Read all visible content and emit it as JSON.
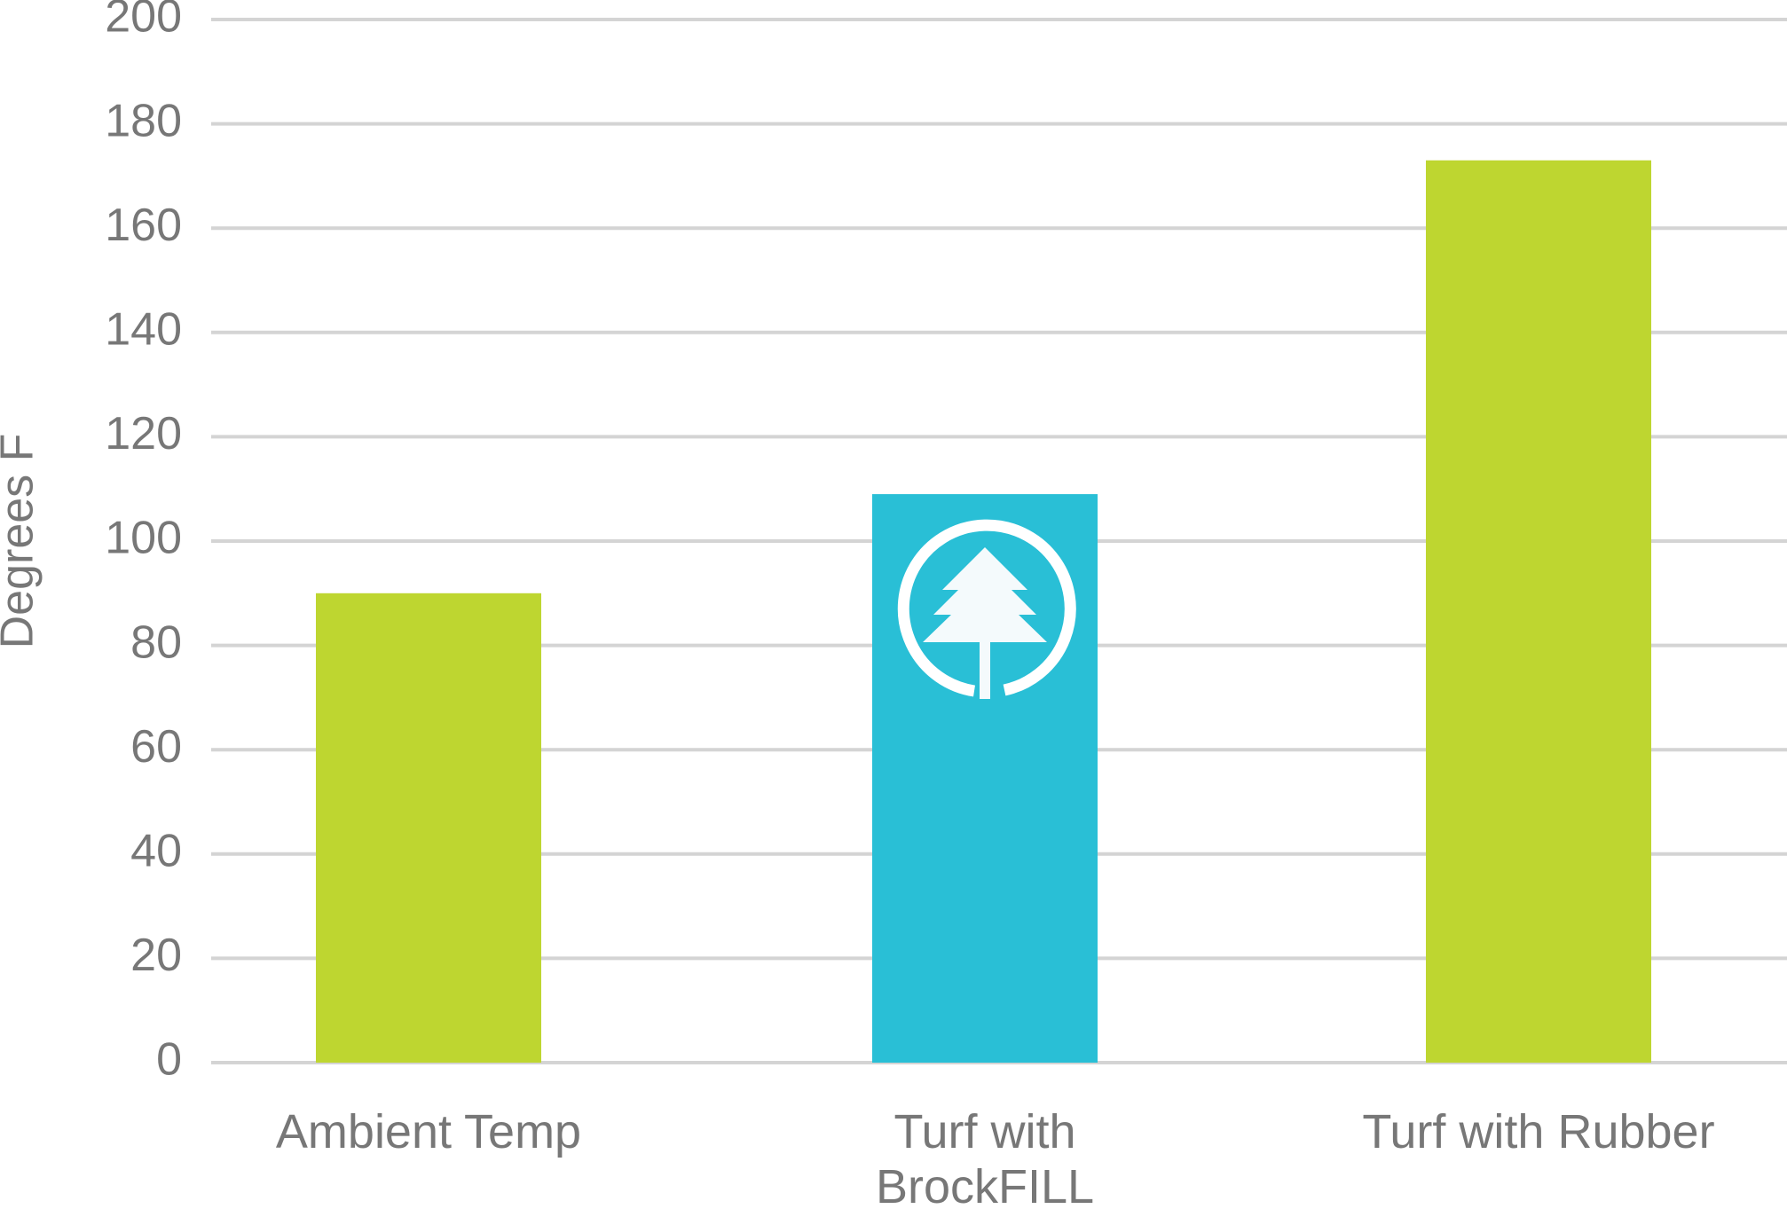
{
  "chart_data": {
    "type": "bar",
    "y_label": "Degrees F",
    "categories": [
      "Ambient Temp",
      "Turf with BrockFILL",
      "Turf with Rubber"
    ],
    "values": [
      90,
      109,
      173
    ],
    "colors": [
      "#bed630",
      "#29bfd6",
      "#bed630"
    ],
    "ylim": [
      0,
      200
    ],
    "yticks": [
      0,
      20,
      40,
      60,
      80,
      100,
      120,
      140,
      160,
      180,
      200
    ],
    "grid": true
  }
}
